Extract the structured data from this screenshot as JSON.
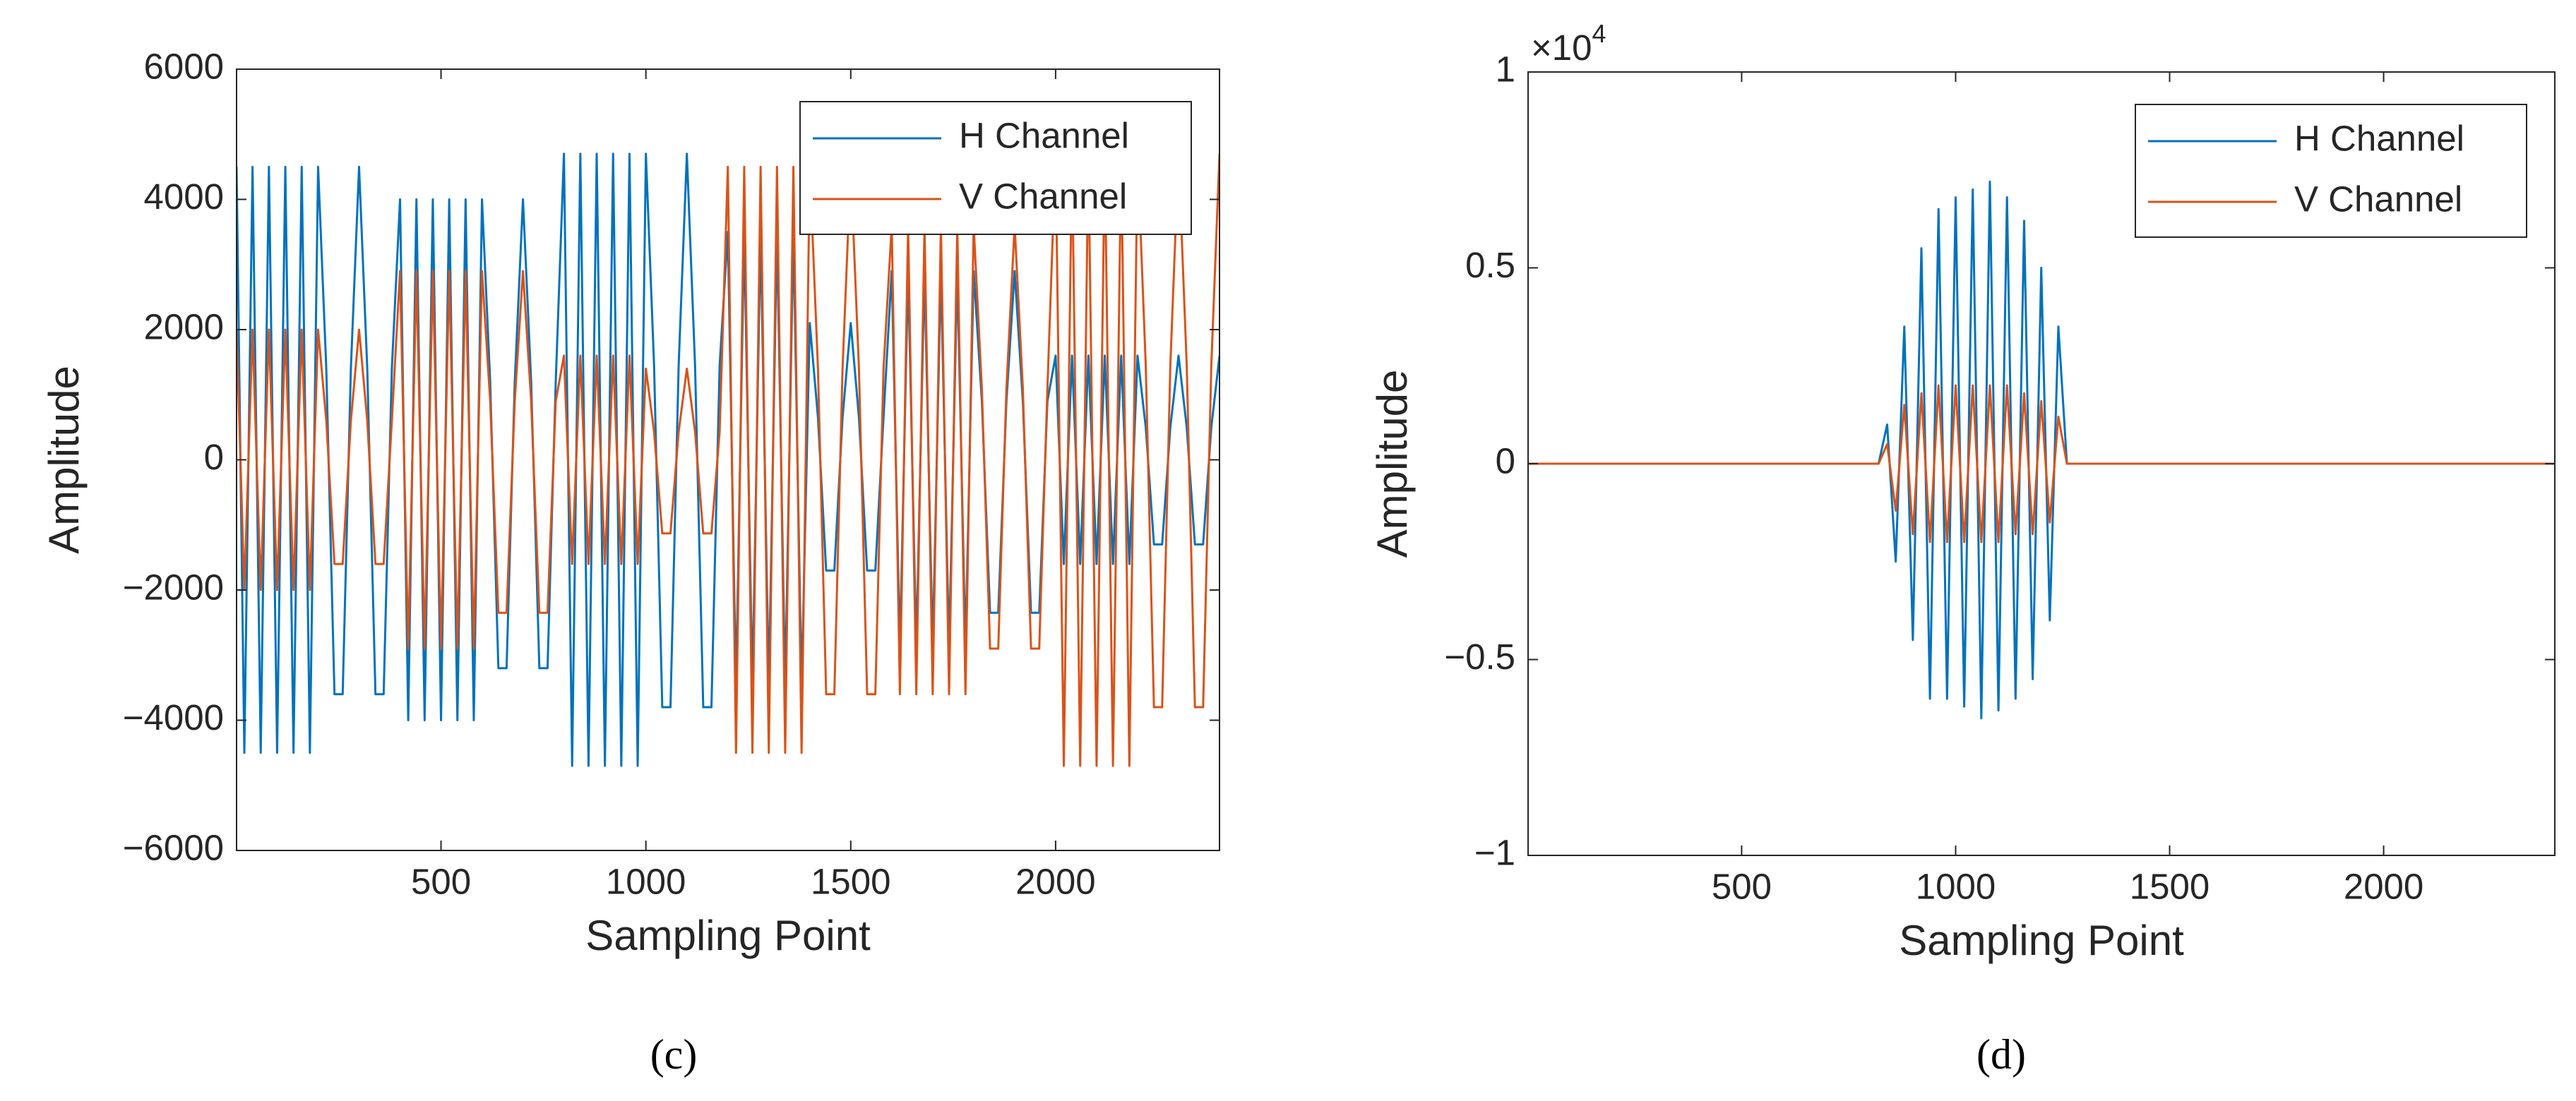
{
  "chart_data": [
    {
      "type": "line",
      "caption": "(c)",
      "xlabel": "Sampling Point",
      "ylabel": "Amplitude",
      "legend": "upper right",
      "xlim": [
        1,
        2400
      ],
      "ylim": [
        -6000,
        6000
      ],
      "xticks": [
        500,
        1000,
        1500,
        2000
      ],
      "yticks": [
        {
          "value": -6000,
          "label": "−6000"
        },
        {
          "value": -4000,
          "label": "−4000"
        },
        {
          "value": -2000,
          "label": "−2000"
        },
        0,
        2000,
        4000,
        6000
      ],
      "x": [
        1,
        20,
        40,
        60,
        80,
        100,
        120,
        140,
        160,
        180,
        200,
        220,
        240,
        260,
        280,
        300,
        320,
        340,
        360,
        380,
        400,
        420,
        440,
        460,
        480,
        500,
        520,
        540,
        560,
        580,
        600,
        620,
        640,
        660,
        680,
        700,
        720,
        740,
        760,
        780,
        800,
        820,
        840,
        860,
        880,
        900,
        920,
        940,
        960,
        980,
        1000,
        1020,
        1040,
        1060,
        1080,
        1100,
        1120,
        1140,
        1160,
        1180,
        1200,
        1220,
        1240,
        1260,
        1280,
        1300,
        1320,
        1340,
        1360,
        1380,
        1400,
        1420,
        1440,
        1460,
        1480,
        1500,
        1520,
        1540,
        1560,
        1580,
        1600,
        1620,
        1640,
        1660,
        1680,
        1700,
        1720,
        1740,
        1760,
        1780,
        1800,
        1820,
        1840,
        1860,
        1880,
        1900,
        1920,
        1940,
        1960,
        1980,
        2000,
        2020,
        2040,
        2060,
        2080,
        2100,
        2120,
        2140,
        2160,
        2180,
        2200,
        2220,
        2240,
        2260,
        2280,
        2300,
        2320,
        2340,
        2360,
        2380,
        2400
      ],
      "series": [
        {
          "name": "H Channel",
          "color": "#0072BD",
          "values": [
            4500,
            -4500,
            4500,
            -4500,
            4500,
            -4500,
            4500,
            -4500,
            4500,
            -4500,
            4500,
            1400,
            -3600,
            -3600,
            1400,
            4500,
            1400,
            -3600,
            -3600,
            1400,
            4000,
            -4000,
            4000,
            -4000,
            4000,
            -4000,
            4000,
            -4000,
            4000,
            -4000,
            4000,
            1200,
            -3200,
            -3200,
            1200,
            4000,
            1200,
            -3200,
            -3200,
            1200,
            4700,
            -4700,
            4700,
            -4700,
            4700,
            -4700,
            4700,
            -4700,
            4700,
            -4700,
            4700,
            1450,
            -3800,
            -3800,
            1450,
            4700,
            1450,
            -3800,
            -3800,
            1450,
            3500,
            -3500,
            3500,
            -3500,
            3500,
            -3500,
            3500,
            -3500,
            3500,
            -3500,
            2100,
            650,
            -1700,
            -1700,
            650,
            2100,
            650,
            -1700,
            -1700,
            650,
            2900,
            -2900,
            2900,
            -2900,
            2900,
            -2900,
            2900,
            -2900,
            2900,
            -2900,
            2900,
            900,
            -2350,
            -2350,
            900,
            2900,
            900,
            -2350,
            -2350,
            900,
            1600,
            -1600,
            1600,
            -1600,
            1600,
            -1600,
            1600,
            -1600,
            1600,
            -1600,
            1600,
            500,
            -1300,
            -1300,
            500,
            1600,
            500,
            -1300,
            -1300,
            500,
            1600
          ]
        },
        {
          "name": "V Channel",
          "color": "#D95319",
          "values": [
            2000,
            -2000,
            2000,
            -2000,
            2000,
            -2000,
            2000,
            -2000,
            2000,
            -2000,
            2000,
            600,
            -1600,
            -1600,
            600,
            2000,
            600,
            -1600,
            -1600,
            600,
            2900,
            -2900,
            2900,
            -2900,
            2900,
            -2900,
            2900,
            -2900,
            2900,
            -2900,
            2900,
            900,
            -2350,
            -2350,
            900,
            2900,
            900,
            -2350,
            -2350,
            900,
            1600,
            -1600,
            1600,
            -1600,
            1600,
            -1600,
            1600,
            -1600,
            1600,
            -1600,
            1400,
            430,
            -1130,
            -1130,
            430,
            1400,
            430,
            -1130,
            -1130,
            430,
            4500,
            -4500,
            4500,
            -4500,
            4500,
            -4500,
            4500,
            -4500,
            4500,
            -4500,
            4500,
            1400,
            -3600,
            -3600,
            1400,
            4500,
            1400,
            -3600,
            -3600,
            1400,
            3600,
            -3600,
            3600,
            -3600,
            3600,
            -3600,
            3600,
            -3600,
            3600,
            -3600,
            3600,
            1100,
            -2900,
            -2900,
            1100,
            3600,
            1100,
            -2900,
            -2900,
            1100,
            4700,
            -4700,
            4700,
            -4700,
            4700,
            -4700,
            4700,
            -4700,
            4700,
            -4700,
            4700,
            1450,
            -3800,
            -3800,
            1450,
            4700,
            1450,
            -3800,
            -3800,
            1450,
            4700
          ]
        }
      ]
    },
    {
      "type": "line",
      "caption": "(d)",
      "xlabel": "Sampling Point",
      "ylabel": "Amplitude",
      "legend": "upper right",
      "y_multiplier": "×10",
      "y_multiplier_exponent": "4",
      "xlim": [
        1,
        2400
      ],
      "ylim": [
        -1,
        1
      ],
      "xticks": [
        500,
        1000,
        1500,
        2000
      ],
      "yticks": [
        {
          "value": -1,
          "label": "−1"
        },
        {
          "value": -0.5,
          "label": "−0.5"
        },
        0,
        0.5,
        1
      ],
      "x": [
        1,
        20,
        40,
        60,
        80,
        100,
        120,
        140,
        160,
        180,
        200,
        220,
        240,
        260,
        280,
        300,
        320,
        340,
        360,
        380,
        400,
        420,
        440,
        460,
        480,
        500,
        520,
        540,
        560,
        580,
        600,
        620,
        640,
        660,
        680,
        700,
        720,
        740,
        760,
        780,
        800,
        820,
        840,
        860,
        880,
        900,
        920,
        940,
        960,
        980,
        1000,
        1020,
        1040,
        1060,
        1080,
        1100,
        1120,
        1140,
        1160,
        1180,
        1200,
        1220,
        1240,
        1260,
        1280,
        1300,
        1320,
        1340,
        1360,
        1380,
        1400,
        1420,
        1440,
        1460,
        1480,
        1500,
        1520,
        1540,
        1560,
        1580,
        1600,
        1620,
        1640,
        1660,
        1680,
        1700,
        1720,
        1740,
        1760,
        1780,
        1800,
        1820,
        1840,
        1860,
        1880,
        1900,
        1920,
        1940,
        1960,
        1980,
        2000,
        2020,
        2040,
        2060,
        2080,
        2100,
        2120,
        2140,
        2160,
        2180,
        2200,
        2220,
        2240,
        2260,
        2280,
        2300,
        2320,
        2340,
        2360,
        2380,
        2400
      ],
      "series": [
        {
          "name": "H Channel",
          "color": "#0072BD",
          "values": [
            0,
            0,
            0,
            0,
            0,
            0,
            0,
            0,
            0,
            0,
            0,
            0,
            0,
            0,
            0,
            0,
            0,
            0,
            0,
            0,
            0,
            0,
            0,
            0,
            0,
            0,
            0,
            0,
            0,
            0,
            0,
            0,
            0,
            0,
            0,
            0,
            0,
            0,
            0,
            0,
            0,
            0,
            0.1,
            -0.25,
            0.35,
            -0.45,
            0.55,
            -0.6,
            0.65,
            -0.6,
            0.68,
            -0.62,
            0.7,
            -0.65,
            0.72,
            -0.63,
            0.68,
            -0.6,
            0.62,
            -0.55,
            0.5,
            -0.4,
            0.35,
            0,
            0,
            0,
            0,
            0,
            0,
            0,
            0,
            0,
            0,
            0,
            0,
            0,
            0,
            0,
            0,
            0,
            0,
            0,
            0,
            0,
            0,
            0,
            0,
            0,
            0,
            0,
            0,
            0,
            0,
            0,
            0,
            0,
            0,
            0,
            0,
            0,
            0,
            0,
            0,
            0,
            0,
            0,
            0,
            0,
            0,
            0,
            0,
            0,
            0,
            0,
            0,
            0,
            0,
            0,
            0,
            0,
            0
          ]
        },
        {
          "name": "V Channel",
          "color": "#D95319",
          "values": [
            0,
            0,
            0,
            0,
            0,
            0,
            0,
            0,
            0,
            0,
            0,
            0,
            0,
            0,
            0,
            0,
            0,
            0,
            0,
            0,
            0,
            0,
            0,
            0,
            0,
            0,
            0,
            0,
            0,
            0,
            0,
            0,
            0,
            0,
            0,
            0,
            0,
            0,
            0,
            0,
            0,
            0,
            0.05,
            -0.12,
            0.15,
            -0.18,
            0.18,
            -0.2,
            0.2,
            -0.2,
            0.2,
            -0.2,
            0.2,
            -0.2,
            0.2,
            -0.2,
            0.2,
            -0.18,
            0.18,
            -0.18,
            0.16,
            -0.15,
            0.12,
            0,
            0,
            0,
            0,
            0,
            0,
            0,
            0,
            0,
            0,
            0,
            0,
            0,
            0,
            0,
            0,
            0,
            0,
            0,
            0,
            0,
            0,
            0,
            0,
            0,
            0,
            0,
            0,
            0,
            0,
            0,
            0,
            0,
            0,
            0,
            0,
            0,
            0,
            0,
            0,
            0,
            0,
            0,
            0,
            0,
            0,
            0,
            0,
            0,
            0,
            0,
            0,
            0,
            0,
            0,
            0,
            0,
            0
          ]
        }
      ]
    }
  ]
}
